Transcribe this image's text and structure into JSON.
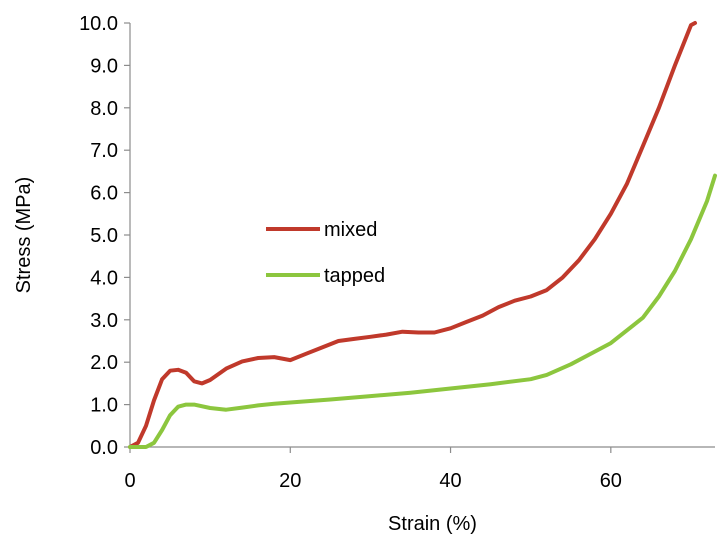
{
  "chart_data": {
    "type": "line",
    "title": "",
    "xlabel": "Strain (%)",
    "ylabel": "Stress (MPa)",
    "xlim": [
      0,
      73
    ],
    "ylim": [
      0,
      10
    ],
    "x_ticks": [
      0,
      20,
      40,
      60
    ],
    "x_tick_labels": [
      "0",
      "20",
      "40",
      "60"
    ],
    "y_ticks": [
      0,
      1,
      2,
      3,
      4,
      5,
      6,
      7,
      8,
      9,
      10
    ],
    "y_tick_labels": [
      "0.0",
      "1.0",
      "2.0",
      "3.0",
      "4.0",
      "5.0",
      "6.0",
      "7.0",
      "8.0",
      "9.0",
      "10.0"
    ],
    "grid": false,
    "legend_position": "center-left",
    "series": [
      {
        "name": "mixed",
        "color": "#c0392b",
        "x": [
          0,
          1,
          2,
          3,
          4,
          5,
          6,
          7,
          8,
          9,
          10,
          12,
          14,
          16,
          18,
          20,
          22,
          24,
          26,
          28,
          30,
          32,
          34,
          36,
          38,
          40,
          42,
          44,
          46,
          48,
          50,
          52,
          54,
          56,
          58,
          60,
          62,
          64,
          66,
          68,
          70,
          70.5
        ],
        "y": [
          0,
          0.1,
          0.5,
          1.1,
          1.6,
          1.8,
          1.82,
          1.75,
          1.55,
          1.5,
          1.58,
          1.85,
          2.02,
          2.1,
          2.12,
          2.05,
          2.2,
          2.35,
          2.5,
          2.55,
          2.6,
          2.65,
          2.72,
          2.7,
          2.7,
          2.8,
          2.95,
          3.1,
          3.3,
          3.45,
          3.55,
          3.7,
          4.0,
          4.4,
          4.9,
          5.5,
          6.2,
          7.1,
          8.0,
          9.0,
          9.95,
          10.0
        ]
      },
      {
        "name": "tapped",
        "color": "#8cc63e",
        "x": [
          0,
          2,
          3,
          4,
          5,
          6,
          7,
          8,
          10,
          12,
          14,
          16,
          18,
          20,
          25,
          30,
          35,
          40,
          45,
          50,
          52,
          55,
          58,
          60,
          62,
          64,
          66,
          68,
          70,
          72,
          73
        ],
        "y": [
          0,
          0,
          0.1,
          0.4,
          0.75,
          0.95,
          1.0,
          1.0,
          0.92,
          0.88,
          0.93,
          0.98,
          1.02,
          1.05,
          1.12,
          1.2,
          1.28,
          1.38,
          1.48,
          1.6,
          1.7,
          1.95,
          2.25,
          2.45,
          2.75,
          3.05,
          3.55,
          4.15,
          4.9,
          5.8,
          6.4
        ]
      }
    ]
  }
}
